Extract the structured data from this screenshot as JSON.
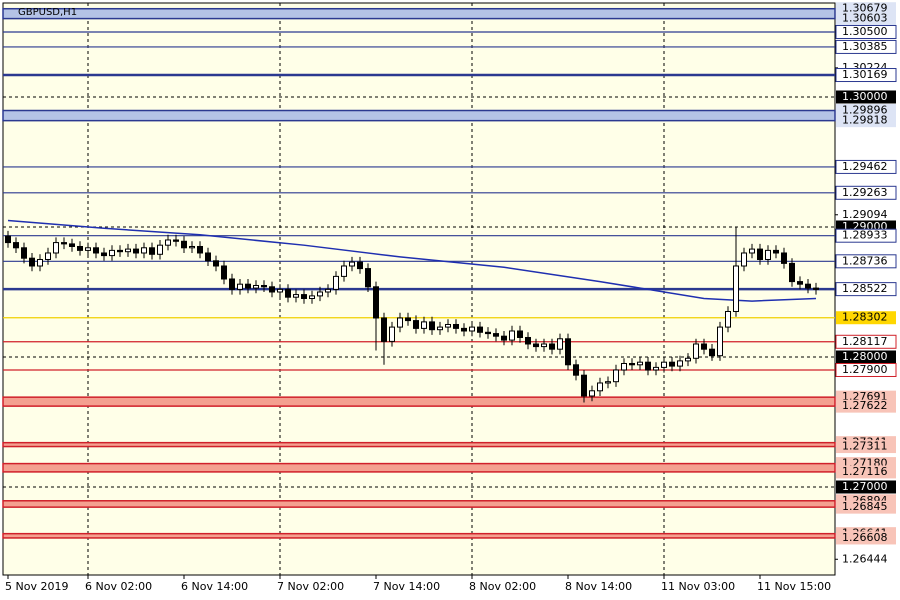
{
  "chart_data": {
    "type": "candlestick",
    "title": "GBPUSD,H1",
    "background": "#ffffe8",
    "ylim": [
      1.26323,
      1.30723
    ],
    "yticks": [
      1.30224,
      1.29094,
      1.26444
    ],
    "grid": true,
    "categories": [
      "5 Nov 2019",
      null,
      null,
      null,
      null,
      null,
      null,
      null,
      null,
      null,
      "6 Nov 02:00",
      null,
      null,
      null,
      null,
      null,
      null,
      null,
      null,
      null,
      null,
      null,
      "6 Nov 14:00",
      null,
      null,
      null,
      null,
      null,
      null,
      null,
      null,
      null,
      null,
      null,
      "7 Nov 02:00",
      null,
      null,
      null,
      null,
      null,
      null,
      null,
      null,
      null,
      null,
      null,
      "7 Nov 14:00",
      null,
      null,
      null,
      null,
      null,
      null,
      null,
      null,
      null,
      null,
      null,
      "8 Nov 02:00",
      null,
      null,
      null,
      null,
      null,
      null,
      null,
      null,
      null,
      null,
      null,
      "8 Nov 14:00",
      null,
      null,
      null,
      null,
      null,
      null,
      null,
      null,
      null,
      null,
      null,
      "11 Nov 03:00",
      null,
      null,
      null,
      null,
      null,
      null,
      null,
      null,
      null,
      null,
      null,
      "11 Nov 15:00",
      null,
      null,
      null,
      null,
      null,
      null,
      null
    ],
    "open": [
      1.2893,
      1.2888,
      1.2884,
      1.2876,
      1.287,
      1.2875,
      1.288,
      1.2888,
      1.2887,
      1.2885,
      1.2882,
      1.2884,
      1.288,
      1.2878,
      1.2882,
      1.2881,
      1.2883,
      1.288,
      1.2884,
      1.2879,
      1.2886,
      1.289,
      1.2889,
      1.2884,
      1.2885,
      1.288,
      1.2874,
      1.287,
      1.286,
      1.2852,
      1.2856,
      1.2853,
      1.2855,
      1.2854,
      1.285,
      1.2852,
      1.2846,
      1.2848,
      1.2845,
      1.2847,
      1.285,
      1.2852,
      1.2862,
      1.287,
      1.2873,
      1.2868,
      1.2854,
      1.283,
      1.2812,
      1.2823,
      1.283,
      1.2828,
      1.2822,
      1.2827,
      1.2821,
      1.2823,
      1.2825,
      1.2822,
      1.282,
      1.2823,
      1.2819,
      1.2818,
      1.2816,
      1.2813,
      1.282,
      1.2815,
      1.281,
      1.2808,
      1.281,
      1.2806,
      1.2814,
      1.2794,
      1.2786,
      1.277,
      1.2774,
      1.278,
      1.2781,
      1.279,
      1.2795,
      1.2794,
      1.2796,
      1.279,
      1.2792,
      1.2796,
      1.2793,
      1.2797,
      1.2799,
      1.281,
      1.2806,
      1.2801,
      1.2823,
      1.2835,
      1.287,
      1.288,
      1.2883,
      1.2875,
      1.2882,
      1.288,
      1.2872,
      1.2858,
      1.2856,
      1.2853
    ],
    "high": [
      1.2897,
      1.2892,
      1.2888,
      1.288,
      1.2879,
      1.2884,
      1.2892,
      1.2892,
      1.2891,
      1.2889,
      1.2888,
      1.2888,
      1.2884,
      1.2886,
      1.2886,
      1.2887,
      1.2887,
      1.2888,
      1.2888,
      1.289,
      1.2894,
      1.2894,
      1.2893,
      1.2889,
      1.2889,
      1.2884,
      1.2878,
      1.2874,
      1.2864,
      1.286,
      1.286,
      1.2859,
      1.2859,
      1.2858,
      1.2856,
      1.2856,
      1.2852,
      1.2852,
      1.2851,
      1.2854,
      1.2856,
      1.2866,
      1.2874,
      1.2877,
      1.2877,
      1.2872,
      1.2858,
      1.2834,
      1.2827,
      1.2834,
      1.2834,
      1.2832,
      1.2831,
      1.2831,
      1.2827,
      1.2829,
      1.2829,
      1.2826,
      1.2827,
      1.2827,
      1.2823,
      1.2822,
      1.282,
      1.2824,
      1.2824,
      1.2819,
      1.2814,
      1.2814,
      1.2814,
      1.2818,
      1.2818,
      1.2798,
      1.279,
      1.2778,
      1.2784,
      1.2785,
      1.2794,
      1.2799,
      1.2799,
      1.28,
      1.28,
      1.2796,
      1.28,
      1.28,
      1.2801,
      1.2803,
      1.2814,
      1.2814,
      1.281,
      1.2827,
      1.2839,
      1.29,
      1.2884,
      1.2887,
      1.2887,
      1.2886,
      1.2886,
      1.2884,
      1.2876,
      1.2862,
      1.286,
      1.2857
    ],
    "low": [
      1.2884,
      1.288,
      1.2872,
      1.2866,
      1.2866,
      1.2871,
      1.2876,
      1.2883,
      1.2881,
      1.2878,
      1.2878,
      1.2876,
      1.2874,
      1.2874,
      1.2877,
      1.2877,
      1.2876,
      1.2876,
      1.2875,
      1.2875,
      1.2882,
      1.2885,
      1.288,
      1.288,
      1.2876,
      1.287,
      1.2866,
      1.2856,
      1.2848,
      1.2848,
      1.2849,
      1.2849,
      1.285,
      1.2846,
      1.2846,
      1.2842,
      1.2842,
      1.2841,
      1.2841,
      1.2843,
      1.2846,
      1.2848,
      1.2858,
      1.2866,
      1.2864,
      1.285,
      1.2805,
      1.2794,
      1.2808,
      1.2819,
      1.2824,
      1.2818,
      1.2818,
      1.2817,
      1.2817,
      1.2819,
      1.2818,
      1.2816,
      1.2816,
      1.2815,
      1.2814,
      1.2812,
      1.2809,
      1.2809,
      1.2811,
      1.2806,
      1.2804,
      1.2804,
      1.2802,
      1.2802,
      1.279,
      1.2782,
      1.2765,
      1.2766,
      1.277,
      1.2776,
      1.2777,
      1.2786,
      1.279,
      1.279,
      1.2786,
      1.2786,
      1.2788,
      1.2789,
      1.2789,
      1.2793,
      1.2795,
      1.2802,
      1.2797,
      1.2797,
      1.2819,
      1.2831,
      1.2866,
      1.2876,
      1.2871,
      1.2871,
      1.2876,
      1.2868,
      1.2854,
      1.2852,
      1.2849,
      1.2848
    ],
    "close": [
      1.2888,
      1.2884,
      1.2876,
      1.287,
      1.2875,
      1.288,
      1.2888,
      1.2887,
      1.2885,
      1.2882,
      1.2884,
      1.288,
      1.2878,
      1.2882,
      1.2881,
      1.2883,
      1.288,
      1.2884,
      1.2879,
      1.2886,
      1.289,
      1.2889,
      1.2884,
      1.2885,
      1.288,
      1.2874,
      1.287,
      1.286,
      1.2852,
      1.2856,
      1.2853,
      1.2855,
      1.2854,
      1.285,
      1.2852,
      1.2846,
      1.2848,
      1.2845,
      1.2847,
      1.285,
      1.2852,
      1.2862,
      1.287,
      1.2873,
      1.2868,
      1.2854,
      1.283,
      1.2812,
      1.2823,
      1.283,
      1.2828,
      1.2822,
      1.2827,
      1.2821,
      1.2823,
      1.2825,
      1.2822,
      1.282,
      1.2823,
      1.2819,
      1.2818,
      1.2816,
      1.2813,
      1.282,
      1.2815,
      1.281,
      1.2808,
      1.281,
      1.2806,
      1.2814,
      1.2794,
      1.2786,
      1.277,
      1.2774,
      1.278,
      1.2781,
      1.279,
      1.2795,
      1.2794,
      1.2796,
      1.279,
      1.2792,
      1.2796,
      1.2793,
      1.2797,
      1.2799,
      1.281,
      1.2806,
      1.2801,
      1.2823,
      1.2835,
      1.287,
      1.288,
      1.2883,
      1.2875,
      1.2882,
      1.288,
      1.2872,
      1.2858,
      1.2856,
      1.2853,
      1.2852
    ],
    "moving_average": {
      "color": "#1f2fb0",
      "x": [
        0,
        12,
        24,
        37,
        49,
        62,
        74,
        87,
        93,
        101
      ],
      "values": [
        1.2905,
        1.2899,
        1.2894,
        1.2886,
        1.2877,
        1.2869,
        1.2858,
        1.2845,
        1.2843,
        1.2845
      ]
    },
    "levels": [
      {
        "prices": [
          1.30679,
          1.30603
        ],
        "color": "#2b3990",
        "fill": "#b4c3e6",
        "label_fill": "#dde4f5"
      },
      {
        "prices": [
          {
            "value": 1.305,
            "label": "1.30500"
          }
        ],
        "color": "#2b3990",
        "label_fill": "#ffffff"
      },
      {
        "prices": [
          1.30385
        ],
        "color": "#2b3990",
        "label_fill": "#ffffff"
      },
      {
        "prices": [
          1.30169
        ],
        "color": "#2b3990",
        "thick": true,
        "label_fill": "#ffffff"
      },
      {
        "prices": [
          {
            "value": 1.3,
            "label": "1.30000"
          }
        ],
        "color": "#000000",
        "style": "dotted",
        "label_fill": "#000000",
        "label_color": "#ffffff"
      },
      {
        "prices": [
          1.29896,
          1.29818
        ],
        "color": "#2b3990",
        "fill": "#b4c3e6",
        "label_fill": "#dde4f5"
      },
      {
        "prices": [
          1.29462
        ],
        "color": "#2b3990",
        "label_fill": "#ffffff"
      },
      {
        "prices": [
          1.29263
        ],
        "color": "#2b3990",
        "label_fill": "#ffffff"
      },
      {
        "prices": [
          {
            "value": 1.29,
            "label": "1.29000"
          }
        ],
        "color": "#000000",
        "style": "dotted",
        "label_fill": "#000000",
        "label_color": "#ffffff"
      },
      {
        "prices": [
          1.28933
        ],
        "color": "#2b3990",
        "label_fill": "#ffffff"
      },
      {
        "prices": [
          1.28736
        ],
        "color": "#2b3990",
        "label_fill": "#ffffff"
      },
      {
        "prices": [
          1.28522
        ],
        "color": "#2b3990",
        "thick": true,
        "label_fill": "#ffffff"
      },
      {
        "prices": [
          1.28302
        ],
        "color": "#f0d000",
        "label_fill": "#ffd700"
      },
      {
        "prices": [
          1.28117
        ],
        "color": "#d0202a",
        "label_fill": "#ffffff"
      },
      {
        "prices": [
          {
            "value": 1.28,
            "label": "1.28000"
          }
        ],
        "color": "#000000",
        "style": "dotted",
        "label_fill": "#000000",
        "label_color": "#ffffff"
      },
      {
        "prices": [
          {
            "value": 1.279,
            "label": "1.27900"
          }
        ],
        "color": "#d0202a",
        "label_fill": "#ffffff"
      },
      {
        "prices": [
          1.27691,
          1.27622
        ],
        "color": "#d0202a",
        "fill": "#f4a090",
        "label_fill": "#f8c4b8"
      },
      {
        "prices": [
          1.27341,
          1.27311
        ],
        "color": "#d0202a",
        "fill": "#f4a090",
        "label_fill": "#f8c4b8"
      },
      {
        "prices": [
          {
            "value": 1.2718,
            "label": "1.27180"
          },
          1.27116
        ],
        "color": "#d0202a",
        "fill": "#f4a090",
        "label_fill": "#f8c4b8"
      },
      {
        "prices": [
          {
            "value": 1.27,
            "label": "1.27000"
          }
        ],
        "color": "#000000",
        "style": "dotted",
        "label_fill": "#000000",
        "label_color": "#ffffff"
      },
      {
        "prices": [
          1.26894,
          1.26845
        ],
        "color": "#d0202a",
        "fill": "#f4a090",
        "label_fill": "#f8c4b8"
      },
      {
        "prices": [
          1.26641,
          1.26608
        ],
        "color": "#d0202a",
        "fill": "#f4a090",
        "label_fill": "#f8c4b8"
      }
    ]
  }
}
